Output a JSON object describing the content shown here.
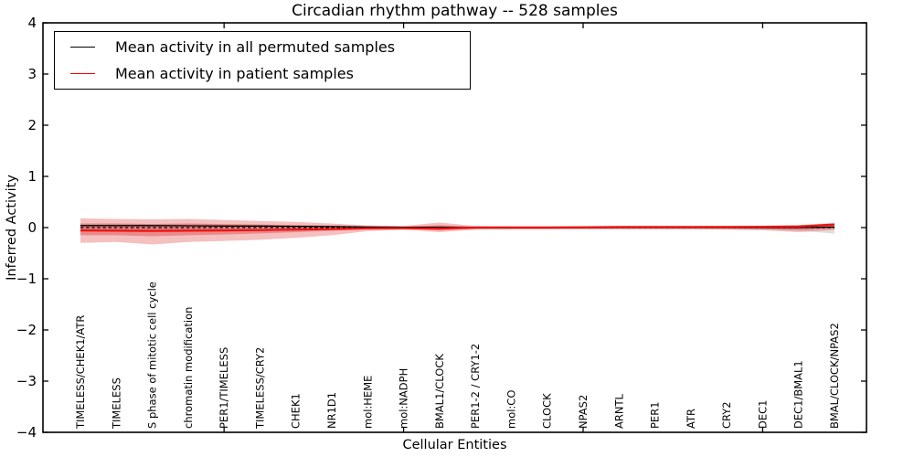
{
  "figure": {
    "title": "Circadian rhythm pathway -- 528 samples",
    "xlabel": "Cellular Entities",
    "ylabel": "Inferred Activity"
  },
  "legend": {
    "items": [
      {
        "label": "Mean activity in all permuted samples",
        "color": "#000000"
      },
      {
        "label": "Mean activity in patient samples",
        "color": "#ff0000"
      }
    ],
    "position": "upper left"
  },
  "chart_data": {
    "type": "line",
    "title": "Circadian rhythm pathway -- 528 samples",
    "xlabel": "Cellular Entities",
    "ylabel": "Inferred Activity",
    "ylim": [
      -4,
      4
    ],
    "yticks": [
      "4",
      "3",
      "2",
      "1",
      "0",
      "−1",
      "−2",
      "−3",
      "−4"
    ],
    "ytick_values": [
      4,
      3,
      2,
      1,
      0,
      -1,
      -2,
      -3,
      -4
    ],
    "top_axis_tick_indices": [
      4,
      9,
      14,
      19
    ],
    "grid": false,
    "legend_position": "upper left",
    "categories": [
      "TIMELESS/CHEK1/ATR",
      "TIMELESS",
      "S phase of mitotic cell cycle",
      "chromatin modification",
      "PER1/TIMELESS",
      "TIMELESS/CRY2",
      "CHEK1",
      "NR1D1",
      "mol:HEME",
      "mol:NADPH",
      "BMAL1/CLOCK",
      "PER1-2 / CRY1-2",
      "mol:CO",
      "CLOCK",
      "NPAS2",
      "ARNTL",
      "PER1",
      "ATR",
      "CRY2",
      "DEC1",
      "DEC1/BMAL1",
      "BMAL/CLOCK/NPAS2"
    ],
    "series": [
      {
        "name": "Mean activity in all permuted samples",
        "color": "#000000",
        "style": "solid",
        "width": 1.3,
        "values": [
          0.04,
          0.04,
          0.04,
          0.035,
          0.03,
          0.03,
          0.025,
          0.02,
          0.01,
          0.005,
          0.005,
          0.0,
          0.0,
          0.0,
          0.0,
          0.0,
          0.0,
          0.0,
          0.0,
          0.0,
          0.0,
          0.01
        ]
      },
      {
        "name": "zero reference",
        "color": "#000000",
        "style": "dashed",
        "width": 1.3,
        "values": [
          0,
          0,
          0,
          0,
          0,
          0,
          0,
          0,
          0,
          0,
          0,
          0,
          0,
          0,
          0,
          0,
          0,
          0,
          0,
          0,
          0,
          0
        ]
      },
      {
        "name": "Mean activity in patient samples",
        "color": "#ee1111",
        "style": "solid",
        "width": 2.2,
        "values": [
          -0.055,
          -0.06,
          -0.065,
          -0.06,
          -0.055,
          -0.05,
          -0.04,
          -0.03,
          -0.015,
          -0.01,
          -0.02,
          0.0,
          0.0,
          0.0,
          0.005,
          0.01,
          0.01,
          0.01,
          0.01,
          0.015,
          0.02,
          0.06
        ]
      }
    ],
    "bands": [
      {
        "name": "permuted-samples-spread",
        "color": "#bbbbbb",
        "opacity": 0.45,
        "upper": [
          0.06,
          0.06,
          0.06,
          0.06,
          0.055,
          0.05,
          0.05,
          0.045,
          0.04,
          0.035,
          0.035,
          0.03,
          0.03,
          0.03,
          0.03,
          0.03,
          0.03,
          0.03,
          0.035,
          0.04,
          0.05,
          0.1
        ],
        "lower": [
          -0.06,
          -0.06,
          -0.06,
          -0.06,
          -0.055,
          -0.05,
          -0.05,
          -0.045,
          -0.04,
          -0.035,
          -0.035,
          -0.03,
          -0.03,
          -0.03,
          -0.03,
          -0.03,
          -0.03,
          -0.03,
          -0.035,
          -0.04,
          -0.06,
          -0.12
        ]
      },
      {
        "name": "patient-spread-outer",
        "color": "#e66a6a",
        "opacity": 0.42,
        "upper": [
          0.18,
          0.17,
          0.16,
          0.17,
          0.15,
          0.13,
          0.11,
          0.08,
          0.04,
          0.03,
          0.1,
          0.03,
          0.025,
          0.025,
          0.025,
          0.025,
          0.025,
          0.025,
          0.03,
          0.035,
          0.05,
          0.08
        ],
        "lower": [
          -0.3,
          -0.28,
          -0.33,
          -0.28,
          -0.26,
          -0.24,
          -0.2,
          -0.15,
          -0.07,
          -0.04,
          -0.09,
          -0.04,
          -0.035,
          -0.035,
          -0.035,
          -0.035,
          -0.035,
          -0.035,
          -0.04,
          -0.05,
          -0.09,
          -0.05
        ]
      },
      {
        "name": "patient-spread-inner",
        "color": "#e05555",
        "opacity": 0.5,
        "upper": [
          0.08,
          0.08,
          0.07,
          0.08,
          0.07,
          0.06,
          0.05,
          0.035,
          0.02,
          0.01,
          0.05,
          0.015,
          0.01,
          0.01,
          0.01,
          0.012,
          0.012,
          0.012,
          0.015,
          0.02,
          0.03,
          0.065
        ],
        "lower": [
          -0.15,
          -0.15,
          -0.17,
          -0.15,
          -0.135,
          -0.115,
          -0.09,
          -0.06,
          -0.03,
          -0.02,
          -0.055,
          -0.02,
          -0.015,
          -0.015,
          -0.015,
          -0.015,
          -0.015,
          -0.015,
          -0.02,
          -0.03,
          -0.05,
          -0.02
        ]
      }
    ]
  },
  "colors": {
    "axis": "#000000",
    "background": "#ffffff",
    "permuted_line": "#000000",
    "patient_line": "#ff0000"
  }
}
